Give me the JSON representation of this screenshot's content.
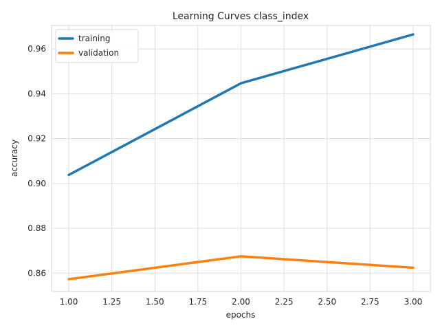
{
  "chart_data": {
    "type": "line",
    "title": "Learning Curves class_index",
    "xlabel": "epochs",
    "ylabel": "accuracy",
    "x": [
      1.0,
      2.0,
      3.0
    ],
    "xlim": [
      0.9,
      3.1
    ],
    "ylim": [
      0.8518,
      0.9705
    ],
    "xticks": [
      "1.00",
      "1.25",
      "1.50",
      "1.75",
      "2.00",
      "2.25",
      "2.50",
      "2.75",
      "3.00"
    ],
    "xtick_values": [
      1.0,
      1.25,
      1.5,
      1.75,
      2.0,
      2.25,
      2.5,
      2.75,
      3.0
    ],
    "yticks": [
      "0.86",
      "0.88",
      "0.90",
      "0.92",
      "0.94",
      "0.96"
    ],
    "ytick_values": [
      0.86,
      0.88,
      0.9,
      0.92,
      0.94,
      0.96
    ],
    "grid": true,
    "legend_position": "top-left",
    "series": [
      {
        "name": "training",
        "values": [
          0.9038,
          0.9447,
          0.9665
        ],
        "color": "#1f77b4"
      },
      {
        "name": "validation",
        "values": [
          0.8573,
          0.8675,
          0.8624
        ],
        "color": "#ff7f0e"
      }
    ]
  }
}
